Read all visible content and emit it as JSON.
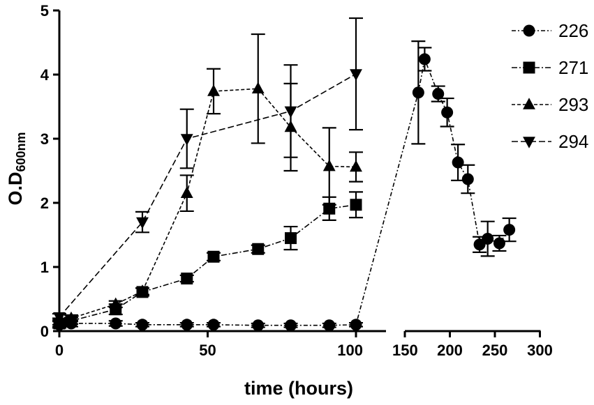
{
  "chart_data": {
    "type": "line",
    "title": "",
    "xlabel": "time (hours)",
    "ylabel": "O.D",
    "ylabel_sub": "600nm",
    "ylim": [
      0,
      5
    ],
    "yticks": [
      "0",
      "1",
      "2",
      "3",
      "4",
      "5"
    ],
    "x_segments": [
      {
        "range": [
          0,
          110
        ],
        "ticks": [
          {
            "value": 0,
            "label": "0"
          },
          {
            "value": 50,
            "label": "50"
          },
          {
            "value": 100,
            "label": "100"
          }
        ]
      },
      {
        "range": [
          150,
          300
        ],
        "ticks": [
          {
            "value": 150,
            "label": "150"
          },
          {
            "value": 200,
            "label": "200"
          },
          {
            "value": 250,
            "label": "250"
          },
          {
            "value": 300,
            "label": "300"
          }
        ]
      }
    ],
    "legend_position": "top-right",
    "series": [
      {
        "name": "226",
        "marker": "circle",
        "dash": "6,3,2,3",
        "points": [
          {
            "x": 0,
            "y": 0.1,
            "err": 0.05
          },
          {
            "x": 4,
            "y": 0.12,
            "err": 0.05
          },
          {
            "x": 19,
            "y": 0.12,
            "err": 0.04
          },
          {
            "x": 28,
            "y": 0.1,
            "err": 0.03
          },
          {
            "x": 43,
            "y": 0.1,
            "err": 0.03
          },
          {
            "x": 52,
            "y": 0.1,
            "err": 0.03
          },
          {
            "x": 67,
            "y": 0.09,
            "err": 0.03
          },
          {
            "x": 78,
            "y": 0.09,
            "err": 0.03
          },
          {
            "x": 91,
            "y": 0.09,
            "err": 0.03
          },
          {
            "x": 100,
            "y": 0.1,
            "err": 0.03
          },
          {
            "x": 165,
            "y": 3.72,
            "err": 0.8
          },
          {
            "x": 172,
            "y": 4.24,
            "err": 0.18
          },
          {
            "x": 187,
            "y": 3.7,
            "err": 0.12
          },
          {
            "x": 197,
            "y": 3.41,
            "err": 0.22
          },
          {
            "x": 209,
            "y": 2.63,
            "err": 0.28
          },
          {
            "x": 220,
            "y": 2.37,
            "err": 0.22
          },
          {
            "x": 233,
            "y": 1.35,
            "err": 0.12
          },
          {
            "x": 242,
            "y": 1.44,
            "err": 0.27
          },
          {
            "x": 255,
            "y": 1.37,
            "err": 0.12
          },
          {
            "x": 266,
            "y": 1.58,
            "err": 0.18
          }
        ]
      },
      {
        "name": "271",
        "marker": "square",
        "dash": "8,3,2,3",
        "points": [
          {
            "x": 0,
            "y": 0.12,
            "err": 0.05
          },
          {
            "x": 4,
            "y": 0.16,
            "err": 0.05
          },
          {
            "x": 19,
            "y": 0.34,
            "err": 0.08
          },
          {
            "x": 28,
            "y": 0.61,
            "err": 0.06
          },
          {
            "x": 43,
            "y": 0.82,
            "err": 0.05
          },
          {
            "x": 52,
            "y": 1.16,
            "err": 0.06
          },
          {
            "x": 67,
            "y": 1.28,
            "err": 0.06
          },
          {
            "x": 78,
            "y": 1.45,
            "err": 0.18
          },
          {
            "x": 91,
            "y": 1.91,
            "err": 0.18
          },
          {
            "x": 100,
            "y": 1.97,
            "err": 0.2
          }
        ]
      },
      {
        "name": "293",
        "marker": "triangle-up",
        "dash": "5,3",
        "points": [
          {
            "x": 0,
            "y": 0.15,
            "err": 0.05
          },
          {
            "x": 4,
            "y": 0.2,
            "err": 0.05
          },
          {
            "x": 19,
            "y": 0.42,
            "err": 0.05
          },
          {
            "x": 28,
            "y": 0.62,
            "err": 0.05
          },
          {
            "x": 43,
            "y": 2.15,
            "err": 0.28
          },
          {
            "x": 52,
            "y": 3.74,
            "err": 0.35
          },
          {
            "x": 67,
            "y": 3.78,
            "err": 0.85
          },
          {
            "x": 78,
            "y": 3.18,
            "err": 0.68
          },
          {
            "x": 91,
            "y": 2.57,
            "err": 0.6
          },
          {
            "x": 100,
            "y": 2.56,
            "err": 0.23
          }
        ]
      },
      {
        "name": "294",
        "marker": "triangle-down",
        "dash": "9,4",
        "points": [
          {
            "x": 0,
            "y": 0.22,
            "err": 0.05
          },
          {
            "x": 28,
            "y": 1.7,
            "err": 0.16
          },
          {
            "x": 43,
            "y": 3.0,
            "err": 0.46
          },
          {
            "x": 78,
            "y": 3.43,
            "err": 0.72
          },
          {
            "x": 100,
            "y": 4.01,
            "err": 0.87
          }
        ]
      }
    ]
  }
}
